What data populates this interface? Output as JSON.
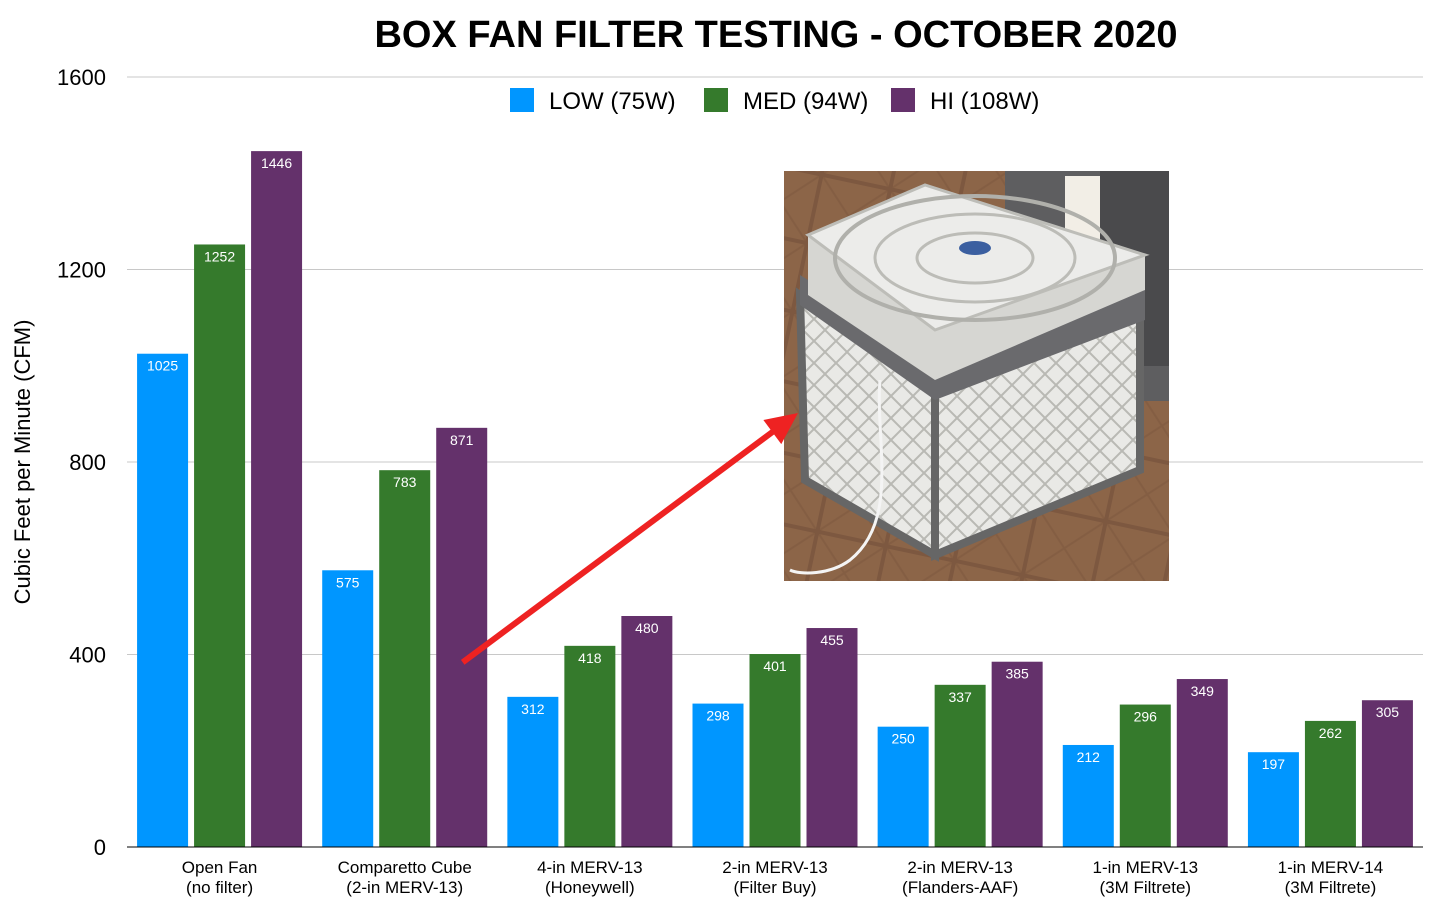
{
  "chart_data": {
    "type": "bar",
    "title": "BOX FAN FILTER TESTING - OCTOBER 2020",
    "ylabel": "Cubic Feet per Minute (CFM)",
    "xlabel": "",
    "ylim": [
      0,
      1600
    ],
    "yticks": [
      0,
      400,
      800,
      1200,
      1600
    ],
    "grid": true,
    "legend_position": "top-center",
    "categories": [
      [
        "Open Fan",
        "(no filter)"
      ],
      [
        "Comparetto Cube",
        "(2-in MERV-13)"
      ],
      [
        "4-in MERV-13",
        "(Honeywell)"
      ],
      [
        "2-in MERV-13",
        "(Filter Buy)"
      ],
      [
        "2-in MERV-13",
        "(Flanders-AAF)"
      ],
      [
        "1-in MERV-13",
        "(3M Filtrete)"
      ],
      [
        "1-in MERV-14",
        "(3M Filtrete)"
      ]
    ],
    "series": [
      {
        "name": "LOW (75W)",
        "color": "#0096FF",
        "values": [
          1025,
          575,
          312,
          298,
          250,
          212,
          197
        ]
      },
      {
        "name": "MED (94W)",
        "color": "#357A2C",
        "values": [
          1252,
          783,
          418,
          401,
          337,
          296,
          262
        ]
      },
      {
        "name": "HI (108W)",
        "color": "#64316B",
        "values": [
          1446,
          871,
          480,
          455,
          385,
          349,
          305
        ]
      }
    ],
    "annotations": [
      {
        "type": "arrow",
        "color": "#EE2222",
        "from_category": 1,
        "from_value": 390,
        "to_category": 3.85,
        "to_value": 890
      },
      {
        "type": "photo",
        "subject": "box fan on top of a cube of pleated air filters taped together"
      }
    ]
  }
}
